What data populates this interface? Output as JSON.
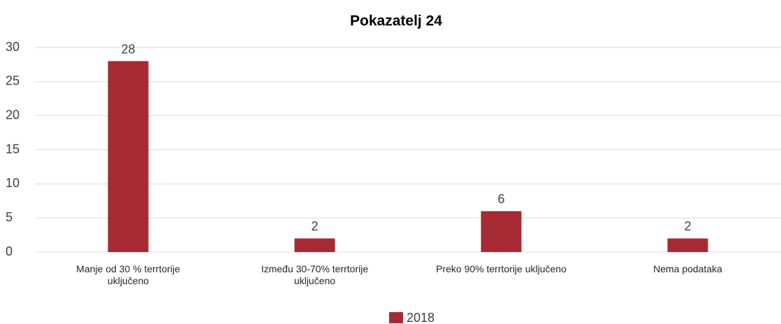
{
  "chart_data": {
    "type": "bar",
    "title": "Pokazatelj 24",
    "categories": [
      "Manje od 30 % terrtorije uključeno",
      "Između 30-70% terrtorije uključeno",
      "Preko 90% terrtorije uključeno",
      "Nema podataka"
    ],
    "series": [
      {
        "name": "2018",
        "color": "#a52a33",
        "values": [
          28,
          2,
          6,
          2
        ]
      }
    ],
    "ylim": [
      0,
      30
    ],
    "yticks": [
      0,
      5,
      10,
      15,
      20,
      25,
      30
    ],
    "grid": true,
    "legend": "bottom"
  }
}
